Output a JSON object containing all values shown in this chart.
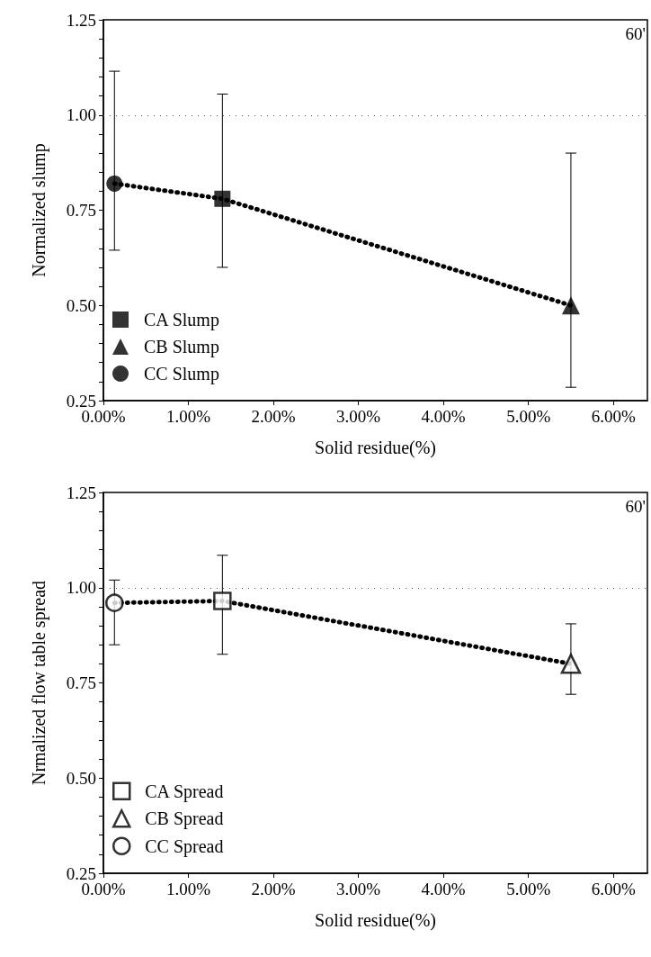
{
  "chart_data": [
    {
      "type": "scatter",
      "xlabel": "Solid residue(%)",
      "ylabel": "Normalized slump",
      "annotations": [
        "60'"
      ],
      "xlim": [
        0,
        6.4
      ],
      "xticks": [
        {
          "value": 0,
          "label": "0.00%"
        },
        {
          "value": 1,
          "label": "1.00%"
        },
        {
          "value": 2,
          "label": "2.00%"
        },
        {
          "value": 3,
          "label": "3.00%"
        },
        {
          "value": 4,
          "label": "4.00%"
        },
        {
          "value": 5,
          "label": "5.00%"
        },
        {
          "value": 6,
          "label": "6.00%"
        }
      ],
      "ylim": [
        0.25,
        1.25
      ],
      "yticks": [
        {
          "value": 0.25,
          "label": "0.25"
        },
        {
          "value": 0.3,
          "label": null
        },
        {
          "value": 0.35,
          "label": null
        },
        {
          "value": 0.4,
          "label": null
        },
        {
          "value": 0.45,
          "label": null
        },
        {
          "value": 0.5,
          "label": "0.50"
        },
        {
          "value": 0.55,
          "label": null
        },
        {
          "value": 0.6,
          "label": null
        },
        {
          "value": 0.65,
          "label": null
        },
        {
          "value": 0.7,
          "label": null
        },
        {
          "value": 0.75,
          "label": "0.75"
        },
        {
          "value": 0.8,
          "label": null
        },
        {
          "value": 0.85,
          "label": null
        },
        {
          "value": 0.9,
          "label": null
        },
        {
          "value": 0.95,
          "label": null
        },
        {
          "value": 1,
          "label": "1.00"
        },
        {
          "value": 1.05,
          "label": null
        },
        {
          "value": 1.1,
          "label": null
        },
        {
          "value": 1.15,
          "label": null
        },
        {
          "value": 1.2,
          "label": null
        },
        {
          "value": 1.25,
          "label": "1.25"
        }
      ],
      "grid": false,
      "legend": "bottom left",
      "ref_lines": [
        {
          "axis": "y",
          "value": 1,
          "color": "#555555",
          "line_style": "dotted"
        }
      ],
      "series": [
        {
          "type": "line",
          "color": "#000000",
          "x": [
            0.13,
            1.4,
            5.5
          ],
          "values": [
            0.82,
            0.78,
            0.5
          ],
          "marker": "none",
          "line_style": "dotted"
        },
        {
          "name": "CA Slump",
          "color": "#000000",
          "marker": "square",
          "x": [
            1.4
          ],
          "values": [
            0.78
          ],
          "errors": [
            [
              0.6,
              1.055
            ]
          ]
        },
        {
          "name": "CB Slump",
          "color": "#000000",
          "marker": "triangle",
          "x": [
            5.5
          ],
          "values": [
            0.5
          ],
          "errors": [
            [
              0.285,
              0.9
            ]
          ]
        },
        {
          "name": "CC Slump",
          "color": "#000000",
          "marker": "circle",
          "x": [
            0.13
          ],
          "values": [
            0.82
          ],
          "errors": [
            [
              0.645,
              1.115
            ]
          ]
        }
      ]
    },
    {
      "type": "scatter",
      "xlabel": "Solid residue(%)",
      "ylabel": "Nrmalized flow table spread",
      "annotations": [
        "60'"
      ],
      "xlim": [
        0,
        6.4
      ],
      "xticks": [
        {
          "value": 0,
          "label": "0.00%"
        },
        {
          "value": 1,
          "label": "1.00%"
        },
        {
          "value": 2,
          "label": "2.00%"
        },
        {
          "value": 3,
          "label": "3.00%"
        },
        {
          "value": 4,
          "label": "4.00%"
        },
        {
          "value": 5,
          "label": "5.00%"
        },
        {
          "value": 6,
          "label": "6.00%"
        }
      ],
      "ylim": [
        0.25,
        1.25
      ],
      "yticks": [
        {
          "value": 0.25,
          "label": "0.25"
        },
        {
          "value": 0.3,
          "label": null
        },
        {
          "value": 0.35,
          "label": null
        },
        {
          "value": 0.4,
          "label": null
        },
        {
          "value": 0.45,
          "label": null
        },
        {
          "value": 0.5,
          "label": "0.50"
        },
        {
          "value": 0.55,
          "label": null
        },
        {
          "value": 0.6,
          "label": null
        },
        {
          "value": 0.65,
          "label": null
        },
        {
          "value": 0.7,
          "label": null
        },
        {
          "value": 0.75,
          "label": "0.75"
        },
        {
          "value": 0.8,
          "label": null
        },
        {
          "value": 0.85,
          "label": null
        },
        {
          "value": 0.9,
          "label": null
        },
        {
          "value": 0.95,
          "label": null
        },
        {
          "value": 1,
          "label": "1.00"
        },
        {
          "value": 1.05,
          "label": null
        },
        {
          "value": 1.1,
          "label": null
        },
        {
          "value": 1.15,
          "label": null
        },
        {
          "value": 1.2,
          "label": null
        },
        {
          "value": 1.25,
          "label": "1.25"
        }
      ],
      "grid": false,
      "legend": "bottom left",
      "ref_lines": [
        {
          "axis": "y",
          "value": 1,
          "color": "#555555",
          "line_style": "dotted"
        }
      ],
      "series": [
        {
          "type": "line",
          "color": "#000000",
          "x": [
            0.13,
            1.4,
            5.5
          ],
          "values": [
            0.96,
            0.965,
            0.8
          ],
          "marker": "none",
          "line_style": "dotted"
        },
        {
          "name": "CA Spread",
          "color": "#000000",
          "marker": "square",
          "x": [
            1.4
          ],
          "values": [
            0.965
          ],
          "errors": [
            [
              0.825,
              1.085
            ]
          ]
        },
        {
          "name": "CB Spread",
          "color": "#000000",
          "marker": "triangle",
          "x": [
            5.5
          ],
          "values": [
            0.8
          ],
          "errors": [
            [
              0.72,
              0.905
            ]
          ]
        },
        {
          "name": "CC Spread",
          "color": "#000000",
          "marker": "circle",
          "x": [
            0.13
          ],
          "values": [
            0.96
          ],
          "errors": [
            [
              0.85,
              1.02
            ]
          ]
        }
      ]
    }
  ]
}
